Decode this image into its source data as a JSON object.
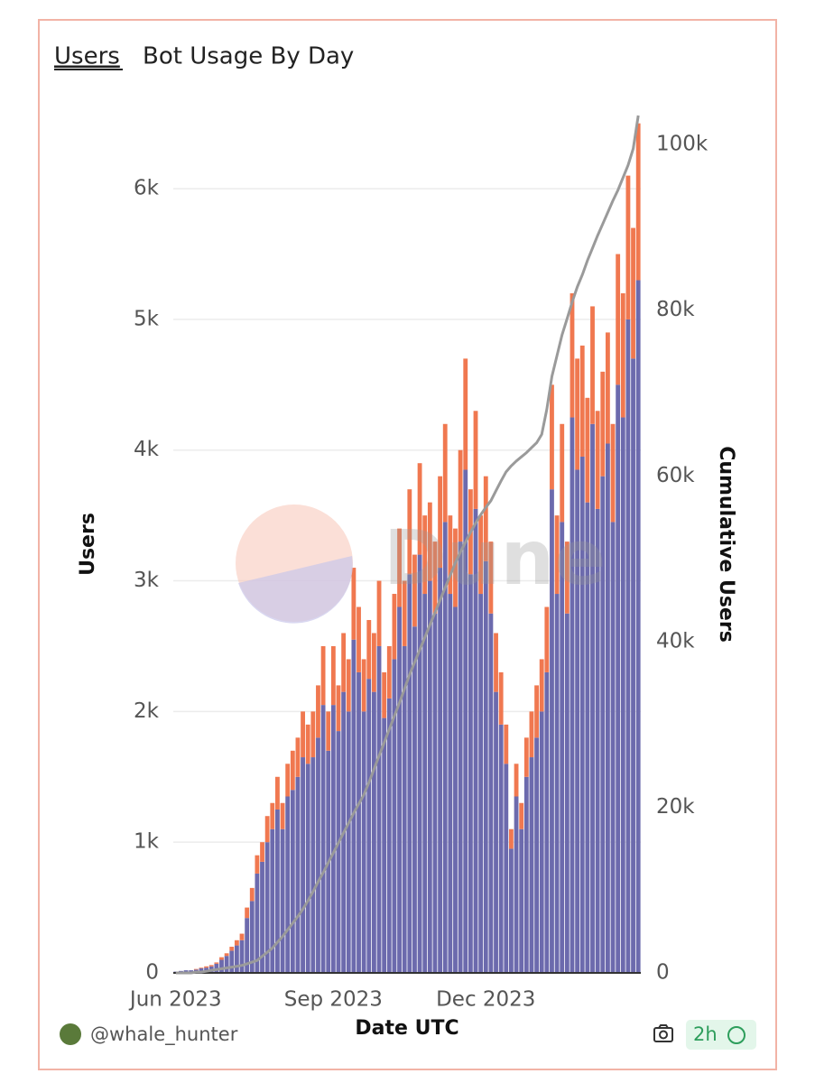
{
  "tab": "Users",
  "footer": {
    "author": "@whale_hunter",
    "age": "2h"
  },
  "chart_data": {
    "type": "bar",
    "title": "Bot Usage By Day",
    "watermark": "Dune",
    "x_label": "Date UTC",
    "y_label": "Users",
    "y2_label": "Cumulative Users",
    "stacked": true,
    "grid": true,
    "categories": [
      "Jun 2023",
      null,
      null,
      null,
      null,
      null,
      null,
      null,
      null,
      null,
      null,
      null,
      null,
      null,
      null,
      null,
      null,
      null,
      null,
      null,
      null,
      null,
      null,
      null,
      null,
      null,
      null,
      null,
      null,
      null,
      null,
      "Sep 2023",
      null,
      null,
      null,
      null,
      null,
      null,
      null,
      null,
      null,
      null,
      null,
      null,
      null,
      null,
      null,
      null,
      null,
      null,
      null,
      null,
      null,
      null,
      null,
      null,
      null,
      null,
      null,
      null,
      null,
      "Dec 2023",
      null,
      null,
      null,
      null,
      null,
      null,
      null,
      null,
      null,
      null,
      null,
      null,
      null,
      null,
      null,
      null,
      null,
      null,
      null,
      null,
      null,
      null,
      null,
      null,
      null,
      null,
      null,
      null,
      null,
      null
    ],
    "ylim": [
      0,
      6560
    ],
    "yticks": [
      0,
      {
        "value": 1000,
        "label": "1k"
      },
      {
        "value": 2000,
        "label": "2k"
      },
      {
        "value": 3000,
        "label": "3k"
      },
      {
        "value": 4000,
        "label": "4k"
      },
      {
        "value": 5000,
        "label": "5k"
      },
      {
        "value": 6000,
        "label": "6k"
      }
    ],
    "y2lim": [
      0,
      103500
    ],
    "y2ticks": [
      0,
      {
        "value": 20000,
        "label": "20k"
      },
      {
        "value": 40000,
        "label": "40k"
      },
      {
        "value": 60000,
        "label": "60k"
      },
      {
        "value": 80000,
        "label": "80k"
      },
      {
        "value": 100000,
        "label": "100k"
      }
    ],
    "series": [
      {
        "color": "#6c6aad",
        "values": [
          10,
          15,
          20,
          20,
          25,
          35,
          40,
          50,
          70,
          100,
          130,
          170,
          210,
          250,
          420,
          550,
          760,
          850,
          1000,
          1100,
          1250,
          1100,
          1350,
          1400,
          1500,
          1650,
          1600,
          1650,
          1800,
          2050,
          1700,
          2050,
          1850,
          2150,
          2000,
          2550,
          2300,
          2000,
          2250,
          2150,
          2500,
          1950,
          2100,
          2400,
          2800,
          2500,
          3050,
          2650,
          3200,
          2900,
          3000,
          2750,
          3100,
          3450,
          2900,
          2800,
          3300,
          3850,
          3050,
          3550,
          2900,
          3150,
          2750,
          2150,
          1900,
          1600,
          950,
          1350,
          1100,
          1500,
          1650,
          1800,
          2000,
          2300,
          3700,
          2900,
          3450,
          2750,
          4250,
          3850,
          3950,
          3600,
          4200,
          3550,
          3800,
          4050,
          3450,
          4500,
          4250,
          5000,
          4700,
          5300
        ]
      },
      {
        "color": "#f07850",
        "values": [
          0,
          0,
          0,
          0,
          5,
          5,
          10,
          10,
          10,
          20,
          20,
          30,
          40,
          50,
          80,
          100,
          140,
          150,
          200,
          200,
          250,
          200,
          250,
          300,
          300,
          350,
          300,
          350,
          400,
          450,
          300,
          450,
          350,
          450,
          400,
          550,
          500,
          400,
          450,
          450,
          500,
          350,
          400,
          500,
          600,
          500,
          650,
          550,
          700,
          600,
          600,
          550,
          700,
          750,
          600,
          600,
          700,
          850,
          650,
          750,
          600,
          650,
          550,
          450,
          400,
          300,
          150,
          250,
          200,
          300,
          350,
          400,
          400,
          500,
          800,
          600,
          750,
          550,
          950,
          850,
          850,
          800,
          900,
          750,
          800,
          850,
          750,
          1000,
          950,
          1100,
          1000,
          1200
        ]
      },
      {
        "type": "line",
        "axis": "y2",
        "color": "#9a9a9a",
        "values": [
          0,
          0,
          0,
          0,
          100,
          100,
          200,
          300,
          400,
          500,
          600,
          700,
          800,
          900,
          1100,
          1300,
          1500,
          2000,
          2500,
          3000,
          3700,
          4400,
          5200,
          6000,
          6800,
          7700,
          8700,
          9800,
          11000,
          12100,
          13300,
          14500,
          15700,
          16900,
          18100,
          19300,
          20400,
          21500,
          23000,
          24600,
          26200,
          27800,
          29400,
          31000,
          32600,
          34300,
          36000,
          37500,
          39000,
          40500,
          42000,
          43500,
          45000,
          46500,
          48000,
          49500,
          50800,
          52000,
          53200,
          54300,
          55300,
          56200,
          57000,
          58200,
          59400,
          60500,
          61200,
          61800,
          62300,
          62800,
          63400,
          64000,
          65000,
          68000,
          72000,
          74500,
          77000,
          79000,
          81000,
          82800,
          84300,
          86000,
          87500,
          89000,
          90400,
          91800,
          93200,
          94500,
          96000,
          97500,
          99500,
          103500
        ]
      }
    ]
  }
}
